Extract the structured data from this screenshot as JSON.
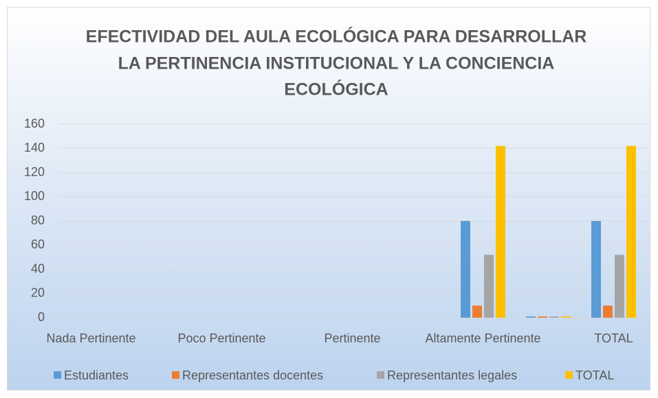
{
  "chart_data": {
    "type": "bar",
    "title": [
      "EFECTIVIDAD DEL AULA ECOLÓGICA PARA DESARROLLAR",
      "LA PERTINENCIA INSTITUCIONAL Y LA CONCIENCIA",
      "ECOLÓGICA"
    ],
    "categories": [
      "Nada Pertinente",
      null,
      "Poco Pertinente",
      null,
      "Pertinente",
      null,
      "Altamente Pertinente",
      null,
      "TOTAL"
    ],
    "series": [
      {
        "name": "Estudiantes",
        "color": "#5b9bd5",
        "values": [
          0,
          0,
          0,
          0,
          0,
          0,
          80,
          1,
          80
        ]
      },
      {
        "name": "Representantes docentes",
        "color": "#ed7d31",
        "values": [
          0,
          0,
          0,
          0,
          0,
          0,
          10,
          1,
          10
        ]
      },
      {
        "name": "Representantes legales",
        "color": "#a5a5a5",
        "values": [
          0,
          0,
          0,
          0,
          0,
          0,
          52,
          1,
          52
        ]
      },
      {
        "name": "TOTAL",
        "color": "#ffc000",
        "values": [
          0,
          0,
          0,
          0,
          0,
          0,
          142,
          1,
          142
        ]
      }
    ],
    "ylim": [
      0,
      160
    ],
    "yticks": [
      0,
      20,
      40,
      60,
      80,
      100,
      120,
      140,
      160
    ],
    "grid": true,
    "legend": "bottom"
  }
}
